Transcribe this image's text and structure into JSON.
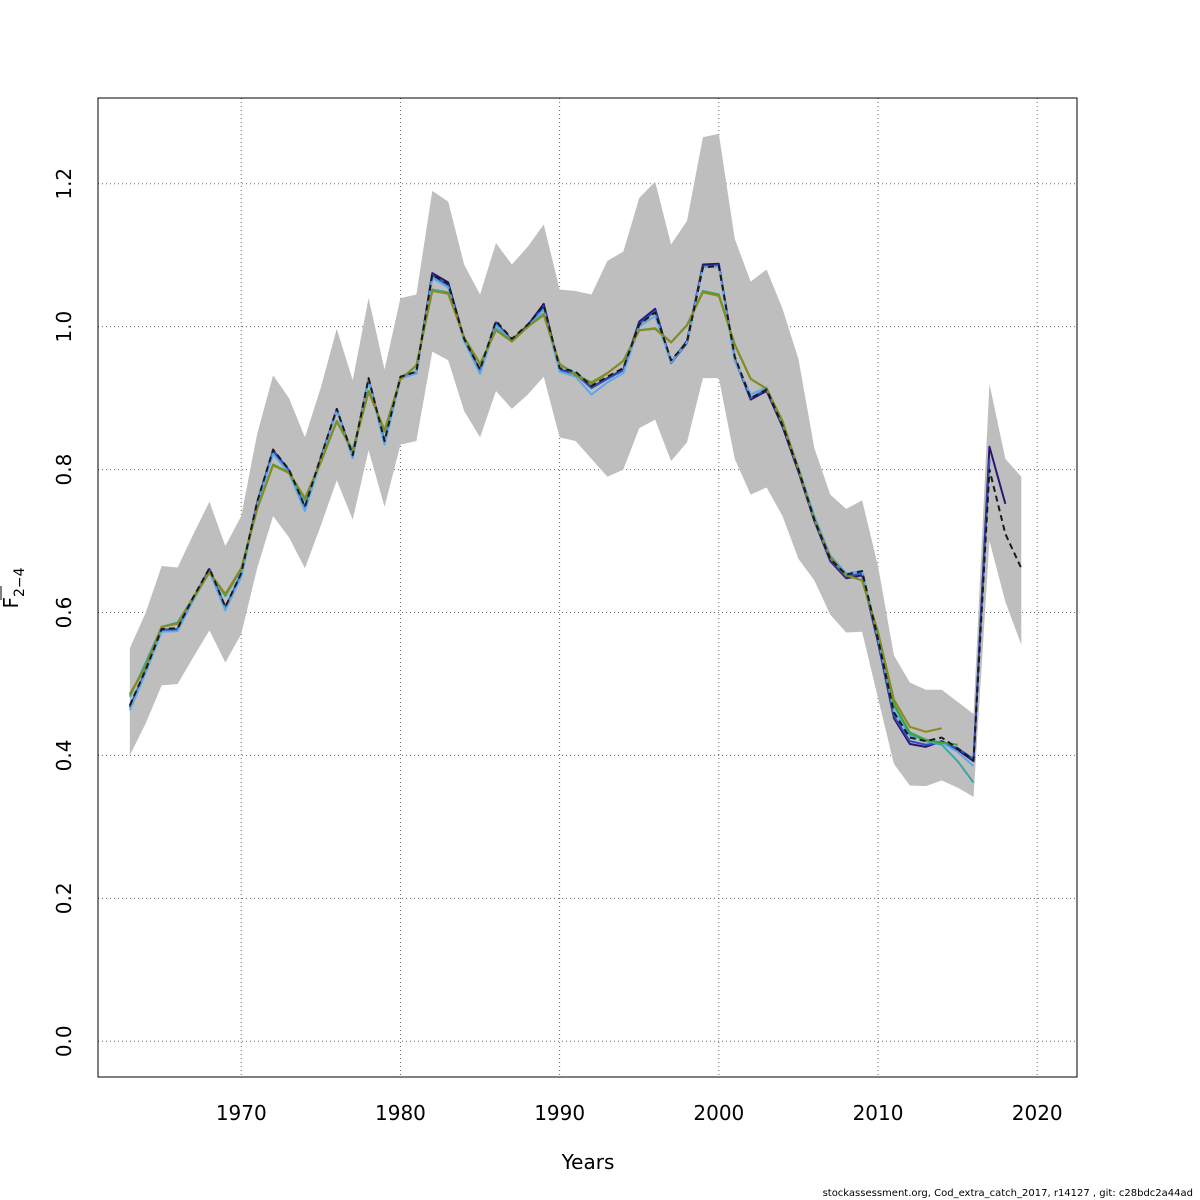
{
  "chart_data": {
    "type": "line",
    "xlabel": "Years",
    "ylabel": "F",
    "ylabel_sub": "2−4",
    "xlim": [
      1961,
      2022.5
    ],
    "ylim": [
      -0.05,
      1.32
    ],
    "x_ticks": [
      1970,
      1980,
      1990,
      2000,
      2010,
      2020
    ],
    "y_ticks": [
      0.0,
      0.2,
      0.4,
      0.6,
      0.8,
      1.0,
      1.2
    ],
    "x_tick_labels": [
      "1970",
      "1980",
      "1990",
      "2000",
      "2010",
      "2020"
    ],
    "y_tick_labels": [
      "0.0",
      "0.2",
      "0.4",
      "0.6",
      "0.8",
      "1.0",
      "1.2"
    ],
    "grid": true,
    "confidence_band": {
      "color": "#bebebe",
      "x": [
        1963,
        1964,
        1965,
        1966,
        1967,
        1968,
        1969,
        1970,
        1971,
        1972,
        1973,
        1974,
        1975,
        1976,
        1977,
        1978,
        1979,
        1980,
        1981,
        1982,
        1983,
        1984,
        1985,
        1986,
        1987,
        1988,
        1989,
        1990,
        1991,
        1992,
        1993,
        1994,
        1995,
        1996,
        1997,
        1998,
        1999,
        2000,
        2001,
        2002,
        2003,
        2004,
        2005,
        2006,
        2007,
        2008,
        2009,
        2010,
        2011,
        2012,
        2013,
        2014,
        2015,
        2016,
        2017,
        2018,
        2019
      ],
      "upper": [
        0.55,
        0.6,
        0.665,
        0.663,
        0.71,
        0.755,
        0.693,
        0.735,
        0.85,
        0.932,
        0.9,
        0.845,
        0.915,
        0.997,
        0.925,
        1.04,
        0.94,
        1.04,
        1.045,
        1.19,
        1.175,
        1.087,
        1.045,
        1.117,
        1.087,
        1.112,
        1.143,
        1.052,
        1.05,
        1.045,
        1.092,
        1.105,
        1.18,
        1.203,
        1.115,
        1.148,
        1.265,
        1.27,
        1.123,
        1.063,
        1.08,
        1.025,
        0.955,
        0.83,
        0.765,
        0.745,
        0.757,
        0.665,
        0.54,
        0.502,
        0.492,
        0.492,
        0.475,
        0.458,
        0.92,
        0.815,
        0.79
      ],
      "lower": [
        0.4,
        0.445,
        0.498,
        0.5,
        0.538,
        0.575,
        0.53,
        0.57,
        0.662,
        0.735,
        0.705,
        0.662,
        0.722,
        0.785,
        0.73,
        0.827,
        0.748,
        0.835,
        0.84,
        0.965,
        0.953,
        0.882,
        0.845,
        0.91,
        0.885,
        0.905,
        0.93,
        0.845,
        0.84,
        0.815,
        0.79,
        0.8,
        0.858,
        0.87,
        0.812,
        0.838,
        0.928,
        0.928,
        0.815,
        0.765,
        0.775,
        0.735,
        0.675,
        0.645,
        0.597,
        0.572,
        0.573,
        0.48,
        0.388,
        0.358,
        0.357,
        0.365,
        0.355,
        0.342,
        0.7,
        0.615,
        0.555
      ]
    },
    "series": [
      {
        "color": "#1a1a1a",
        "dashed": true,
        "width": 2,
        "x": [
          1963,
          1964,
          1965,
          1966,
          1967,
          1968,
          1969,
          1970,
          1971,
          1972,
          1973,
          1974,
          1975,
          1976,
          1977,
          1978,
          1979,
          1980,
          1981,
          1982,
          1983,
          1984,
          1985,
          1986,
          1987,
          1988,
          1989,
          1990,
          1991,
          1992,
          1993,
          1994,
          1995,
          1996,
          1997,
          1998,
          1999,
          2000,
          2001,
          2002,
          2003,
          2004,
          2005,
          2006,
          2007,
          2008,
          2009,
          2010,
          2011,
          2012,
          2013,
          2014,
          2015,
          2016,
          2017,
          2018,
          2019
        ],
        "y": [
          0.47,
          0.52,
          0.577,
          0.578,
          0.622,
          0.662,
          0.608,
          0.655,
          0.755,
          0.828,
          0.8,
          0.748,
          0.818,
          0.885,
          0.82,
          0.928,
          0.84,
          0.93,
          0.937,
          1.073,
          1.06,
          0.983,
          0.94,
          1.008,
          0.983,
          1.003,
          1.03,
          0.942,
          0.937,
          0.917,
          0.93,
          0.942,
          1.003,
          1.02,
          0.953,
          0.978,
          1.083,
          1.085,
          0.958,
          0.9,
          0.912,
          0.862,
          0.8,
          0.73,
          0.675,
          0.653,
          0.658,
          0.563,
          0.46,
          0.425,
          0.42,
          0.425,
          0.41,
          0.393,
          0.8,
          0.71,
          0.662
        ]
      },
      {
        "color": "#2b1670",
        "dashed": false,
        "width": 2,
        "x": [
          1963,
          1964,
          1965,
          1966,
          1967,
          1968,
          1969,
          1970,
          1971,
          1972,
          1973,
          1974,
          1975,
          1976,
          1977,
          1978,
          1979,
          1980,
          1981,
          1982,
          1983,
          1984,
          1985,
          1986,
          1987,
          1988,
          1989,
          1990,
          1991,
          1992,
          1993,
          1994,
          1995,
          1996,
          1997,
          1998,
          1999,
          2000,
          2001,
          2002,
          2003,
          2004,
          2005,
          2006,
          2007,
          2008,
          2009,
          2010,
          2011,
          2012,
          2013,
          2014,
          2015,
          2016,
          2017,
          2018
        ],
        "y": [
          0.468,
          0.518,
          0.575,
          0.576,
          0.62,
          0.66,
          0.606,
          0.653,
          0.753,
          0.826,
          0.798,
          0.746,
          0.816,
          0.883,
          0.818,
          0.926,
          0.838,
          0.928,
          0.935,
          1.075,
          1.062,
          0.982,
          0.938,
          1.006,
          0.981,
          1.002,
          1.032,
          0.94,
          0.935,
          0.915,
          0.928,
          0.94,
          1.007,
          1.025,
          0.95,
          0.98,
          1.087,
          1.088,
          0.955,
          0.898,
          0.91,
          0.86,
          0.797,
          0.728,
          0.672,
          0.648,
          0.652,
          0.558,
          0.452,
          0.416,
          0.412,
          0.42,
          0.408,
          0.392,
          0.832,
          0.752
        ]
      },
      {
        "color": "#2e4fbf",
        "dashed": false,
        "width": 2,
        "x": [
          1963,
          1964,
          1965,
          1966,
          1967,
          1968,
          1969,
          1970,
          1971,
          1972,
          1973,
          1974,
          1975,
          1976,
          1977,
          1978,
          1979,
          1980,
          1981,
          1982,
          1983,
          1984,
          1985,
          1986,
          1987,
          1988,
          1989,
          1990,
          1991,
          1992,
          1993,
          1994,
          1995,
          1996,
          1997,
          1998,
          1999,
          2000,
          2001,
          2002,
          2003,
          2004,
          2005,
          2006,
          2007,
          2008,
          2009,
          2010,
          2011,
          2012,
          2013,
          2014,
          2015,
          2016,
          2017
        ],
        "y": [
          0.467,
          0.519,
          0.576,
          0.577,
          0.621,
          0.661,
          0.607,
          0.654,
          0.754,
          0.827,
          0.799,
          0.747,
          0.817,
          0.884,
          0.819,
          0.927,
          0.839,
          0.929,
          0.936,
          1.072,
          1.058,
          0.981,
          0.937,
          1.005,
          0.98,
          1.0,
          1.028,
          0.939,
          0.934,
          0.914,
          0.927,
          0.939,
          1.004,
          1.022,
          0.949,
          0.977,
          1.084,
          1.086,
          0.953,
          0.9,
          0.912,
          0.862,
          0.8,
          0.73,
          0.674,
          0.65,
          0.655,
          0.56,
          0.455,
          0.42,
          0.415,
          0.418,
          0.41,
          0.395,
          0.815
        ]
      },
      {
        "color": "#5ea8e6",
        "dashed": false,
        "width": 2,
        "x": [
          1963,
          1964,
          1965,
          1966,
          1967,
          1968,
          1969,
          1970,
          1971,
          1972,
          1973,
          1974,
          1975,
          1976,
          1977,
          1978,
          1979,
          1980,
          1981,
          1982,
          1983,
          1984,
          1985,
          1986,
          1987,
          1988,
          1989,
          1990,
          1991,
          1992,
          1993,
          1994,
          1995,
          1996,
          1997,
          1998,
          1999,
          2000,
          2001,
          2002,
          2003,
          2004,
          2005,
          2006,
          2007,
          2008,
          2009,
          2010,
          2011,
          2012,
          2013,
          2014,
          2015,
          2016
        ],
        "y": [
          0.463,
          0.516,
          0.573,
          0.574,
          0.618,
          0.657,
          0.603,
          0.65,
          0.75,
          0.822,
          0.795,
          0.742,
          0.813,
          0.882,
          0.816,
          0.925,
          0.835,
          0.927,
          0.935,
          1.068,
          1.055,
          0.98,
          0.934,
          1.002,
          0.98,
          0.999,
          1.024,
          0.937,
          0.93,
          0.905,
          0.922,
          0.935,
          1.0,
          1.015,
          0.95,
          0.978,
          1.083,
          1.084,
          0.952,
          0.905,
          0.915,
          0.865,
          0.803,
          0.735,
          0.68,
          0.655,
          0.658,
          0.565,
          0.462,
          0.428,
          0.422,
          0.418,
          0.405,
          0.385
        ]
      },
      {
        "color": "#3aa6a6",
        "dashed": false,
        "width": 2,
        "x": [
          1963,
          1964,
          1965,
          1966,
          1967,
          1968,
          1969,
          1970,
          1971,
          1972,
          1973,
          1974,
          1975,
          1976,
          1977,
          1978,
          1979,
          1980,
          1981,
          1982,
          1983,
          1984,
          1985,
          1986,
          1987,
          1988,
          1989,
          1990,
          1991,
          1992,
          1993,
          1994,
          1995,
          1996,
          1997,
          1998,
          1999,
          2000,
          2001,
          2002,
          2003,
          2004,
          2005,
          2006,
          2007,
          2008,
          2009,
          2010,
          2011,
          2012,
          2013,
          2014,
          2015,
          2016
        ],
        "y": [
          0.482,
          0.53,
          0.58,
          0.586,
          0.622,
          0.657,
          0.623,
          0.66,
          0.745,
          0.807,
          0.795,
          0.757,
          0.812,
          0.867,
          0.828,
          0.91,
          0.853,
          0.927,
          0.945,
          1.052,
          1.048,
          0.985,
          0.947,
          0.997,
          0.98,
          1.0,
          1.018,
          0.947,
          0.935,
          0.92,
          0.935,
          0.952,
          0.995,
          0.998,
          0.978,
          1.002,
          1.05,
          1.045,
          0.975,
          0.927,
          0.913,
          0.865,
          0.8,
          0.73,
          0.677,
          0.652,
          0.645,
          0.57,
          0.47,
          0.43,
          0.42,
          0.415,
          0.392,
          0.362
        ]
      },
      {
        "color": "#3fa33a",
        "dashed": false,
        "width": 2,
        "x": [
          1963,
          1964,
          1965,
          1966,
          1967,
          1968,
          1969,
          1970,
          1971,
          1972,
          1973,
          1974,
          1975,
          1976,
          1977,
          1978,
          1979,
          1980,
          1981,
          1982,
          1983,
          1984,
          1985,
          1986,
          1987,
          1988,
          1989,
          1990,
          1991,
          1992,
          1993,
          1994,
          1995,
          1996,
          1997,
          1998,
          1999,
          2000,
          2001,
          2002,
          2003,
          2004,
          2005,
          2006,
          2007,
          2008,
          2009,
          2010,
          2011,
          2012,
          2013,
          2014,
          2015
        ],
        "y": [
          0.485,
          0.524,
          0.58,
          0.585,
          0.62,
          0.656,
          0.625,
          0.662,
          0.745,
          0.807,
          0.796,
          0.76,
          0.81,
          0.868,
          0.825,
          0.91,
          0.855,
          0.927,
          0.945,
          1.05,
          1.047,
          0.985,
          0.948,
          0.995,
          0.98,
          1.0,
          1.017,
          0.948,
          0.932,
          0.922,
          0.935,
          0.952,
          0.995,
          0.997,
          0.978,
          1.002,
          1.049,
          1.045,
          0.975,
          0.927,
          0.913,
          0.868,
          0.8,
          0.73,
          0.677,
          0.652,
          0.645,
          0.572,
          0.472,
          0.432,
          0.422,
          0.418,
          0.415
        ]
      },
      {
        "color": "#8a8a1e",
        "dashed": false,
        "width": 2,
        "x": [
          1963,
          1964,
          1965,
          1966,
          1967,
          1968,
          1969,
          1970,
          1971,
          1972,
          1973,
          1974,
          1975,
          1976,
          1977,
          1978,
          1979,
          1980,
          1981,
          1982,
          1983,
          1984,
          1985,
          1986,
          1987,
          1988,
          1989,
          1990,
          1991,
          1992,
          1993,
          1994,
          1995,
          1996,
          1997,
          1998,
          1999,
          2000,
          2001,
          2002,
          2003,
          2004,
          2005,
          2006,
          2007,
          2008,
          2009,
          2010,
          2011,
          2012,
          2013,
          2014
        ],
        "y": [
          0.486,
          0.525,
          0.58,
          0.584,
          0.621,
          0.656,
          0.626,
          0.662,
          0.745,
          0.806,
          0.795,
          0.76,
          0.811,
          0.868,
          0.826,
          0.909,
          0.855,
          0.926,
          0.946,
          1.05,
          1.046,
          0.985,
          0.948,
          0.995,
          0.979,
          1.0,
          1.016,
          0.948,
          0.932,
          0.92,
          0.935,
          0.952,
          0.995,
          0.997,
          0.978,
          1.002,
          1.048,
          1.043,
          0.975,
          0.927,
          0.913,
          0.868,
          0.8,
          0.73,
          0.678,
          0.652,
          0.645,
          0.573,
          0.478,
          0.44,
          0.433,
          0.438
        ]
      }
    ]
  },
  "footer_text": "stockassessment.org, Cod_extra_catch_2017, r14127 , git: c28bdc2a44ad"
}
